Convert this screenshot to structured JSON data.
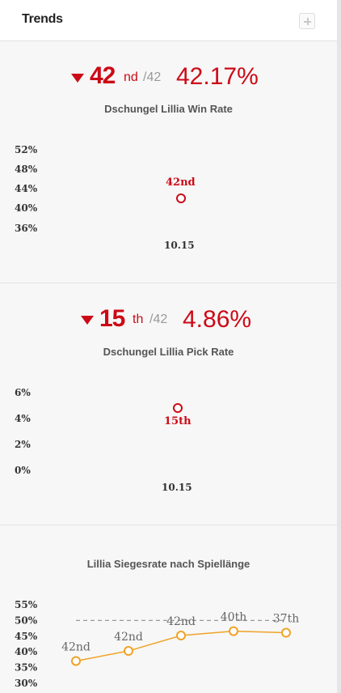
{
  "header": {
    "title": "Trends"
  },
  "win_rate": {
    "rank": "42",
    "rank_suffix": "nd",
    "rank_total": "/42",
    "rate": "42.17%",
    "title": "Dschungel Lillia Win Rate",
    "ticks": [
      "52%",
      "48%",
      "44%",
      "40%",
      "36%"
    ],
    "point_label": "42nd",
    "patch": "10.15",
    "value": 42.17
  },
  "pick_rate": {
    "rank": "15",
    "rank_suffix": "th",
    "rank_total": "/42",
    "rate": "4.86%",
    "title": "Dschungel Lillia Pick Rate",
    "ticks": [
      "6%",
      "4%",
      "2%",
      "0%"
    ],
    "point_label": "15th",
    "patch": "10.15",
    "value": 4.86
  },
  "chart_data": [
    {
      "type": "scatter",
      "title": "Dschungel Lillia Win Rate",
      "x": [
        "10.15"
      ],
      "values": [
        42.17
      ],
      "labels": [
        "42nd"
      ],
      "yticks": [
        "52%",
        "48%",
        "44%",
        "40%",
        "36%"
      ],
      "ylim": [
        36,
        52
      ],
      "color": "#cc0a17"
    },
    {
      "type": "scatter",
      "title": "Dschungel Lillia Pick Rate",
      "x": [
        "10.15"
      ],
      "values": [
        4.86
      ],
      "labels": [
        "15th"
      ],
      "yticks": [
        "6%",
        "4%",
        "2%",
        "0%"
      ],
      "ylim": [
        0,
        6
      ],
      "color": "#cc0a17"
    },
    {
      "type": "line",
      "title": "Lillia Siegesrate nach Spiellänge",
      "values": [
        37.1,
        40.3,
        45.2,
        46.6,
        46.1
      ],
      "labels": [
        "42nd",
        "42nd",
        "42nd",
        "40th",
        "37th"
      ],
      "yticks": [
        "55%",
        "50%",
        "45%",
        "40%",
        "35%",
        "30%"
      ],
      "ylim": [
        30,
        55
      ],
      "reference_line": 50,
      "color": "#f0a326",
      "reference_color": "#999999"
    }
  ]
}
